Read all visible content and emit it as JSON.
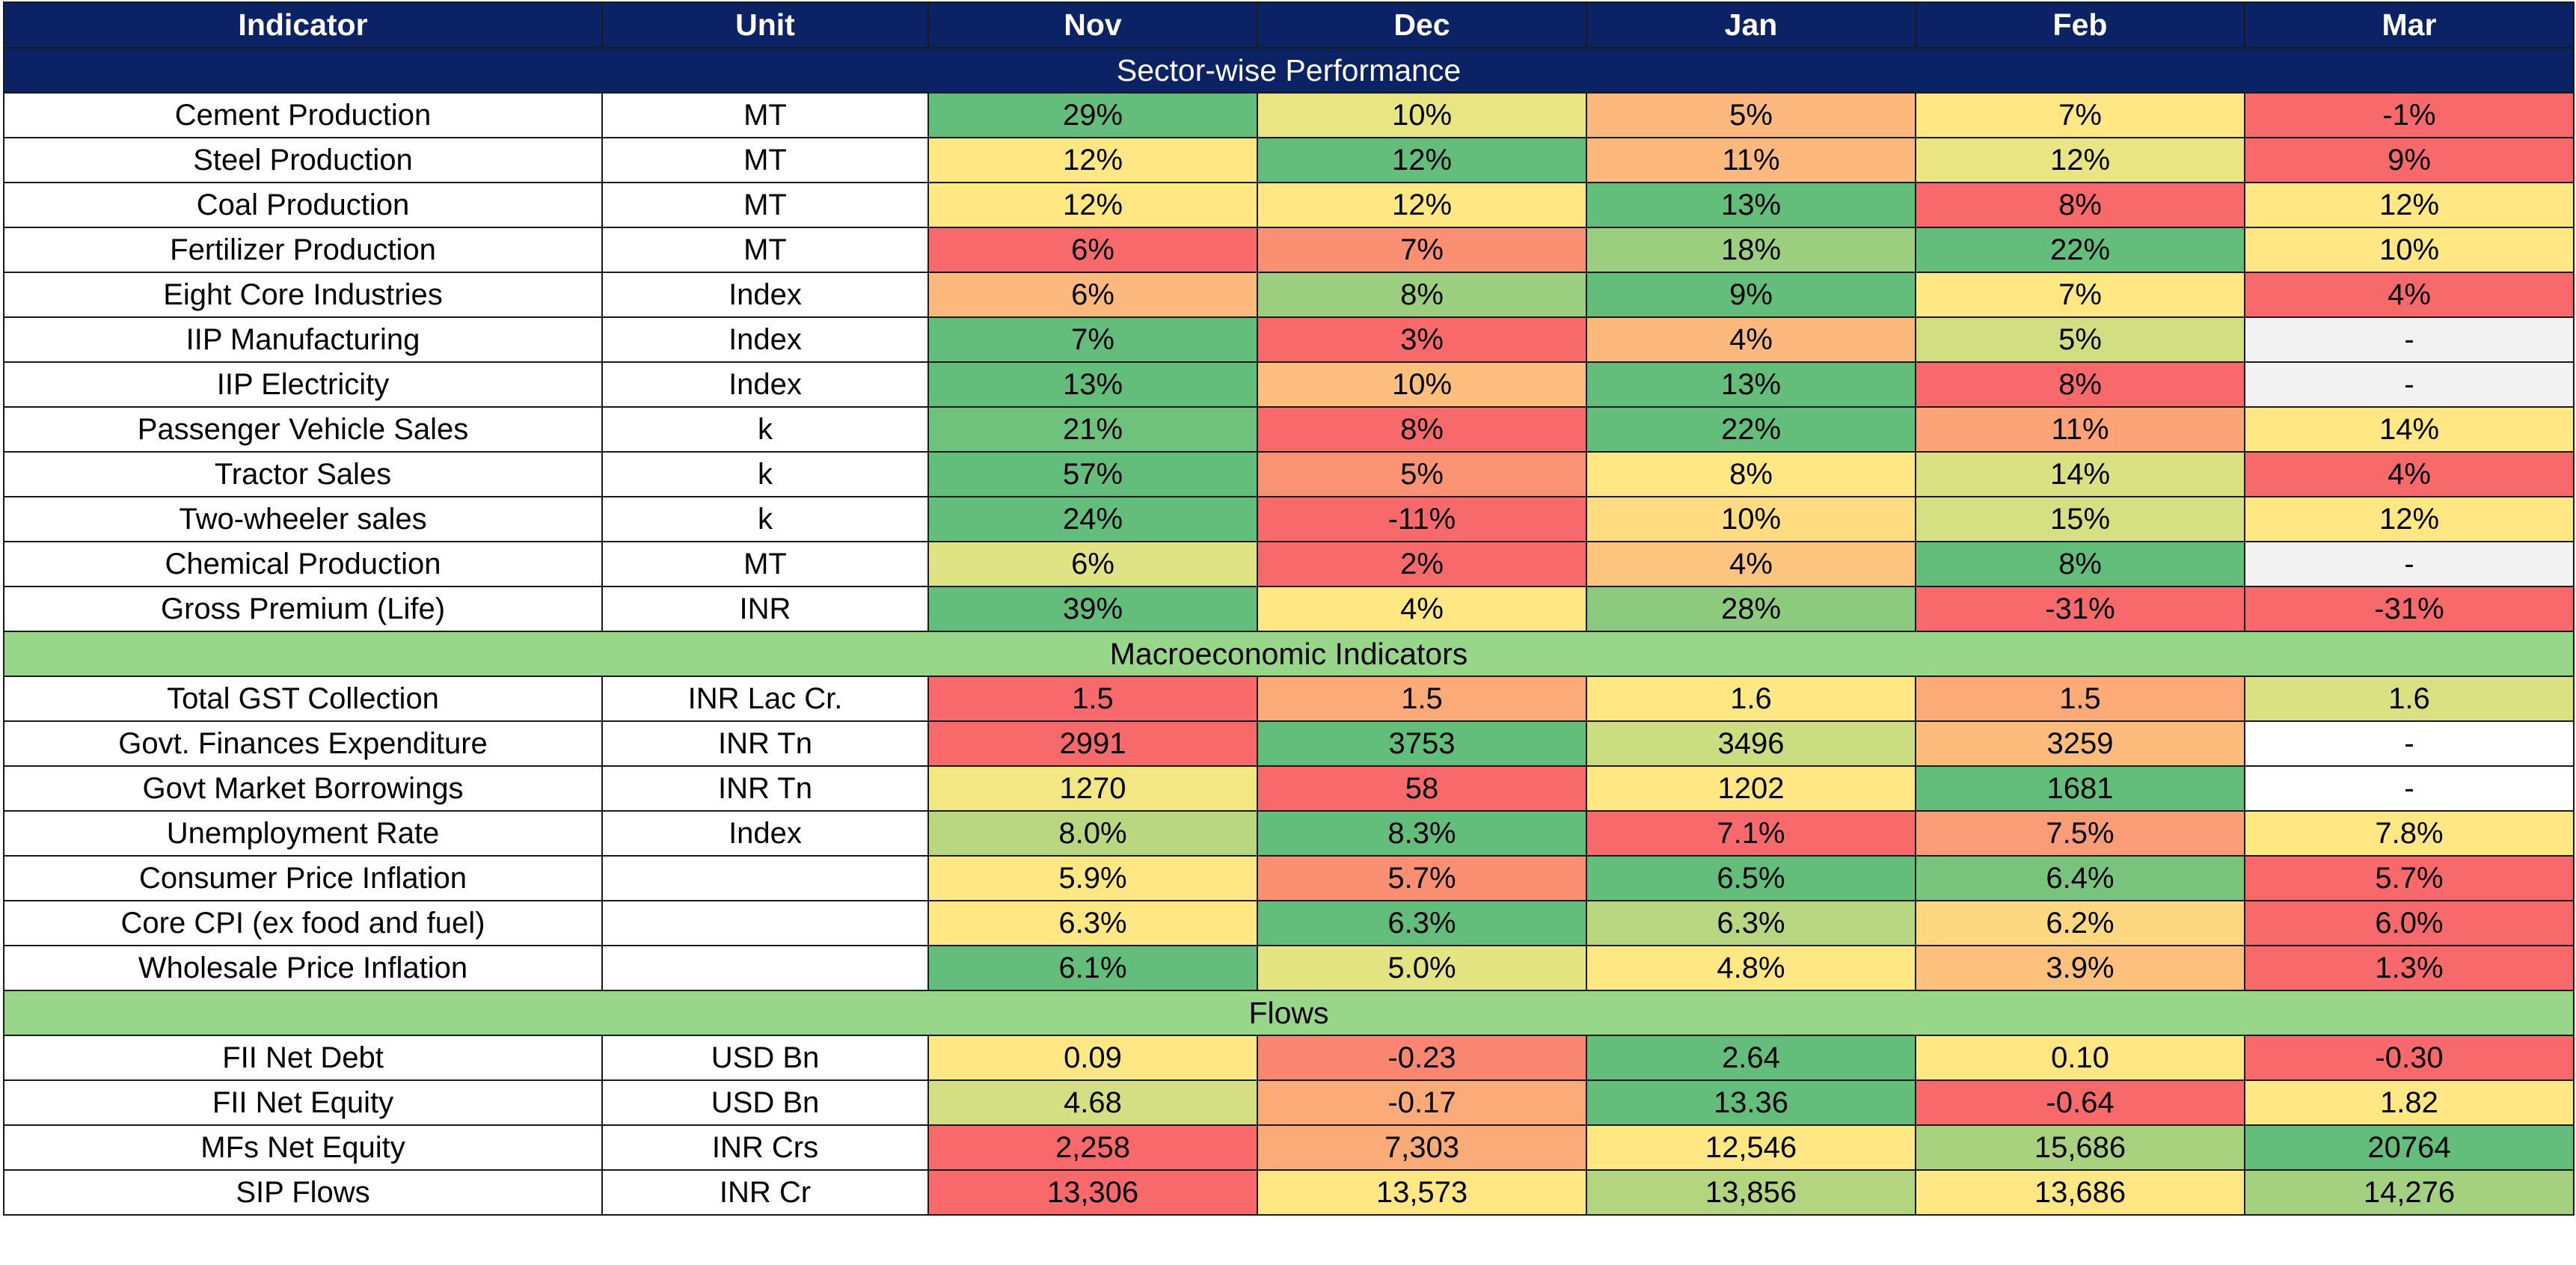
{
  "headers": [
    "Indicator",
    "Unit",
    "Nov",
    "Dec",
    "Jan",
    "Feb",
    "Mar"
  ],
  "sections": [
    {
      "title": "Sector-wise Performance",
      "style": "navy",
      "rows": [
        {
          "indicator": "Cement Production",
          "unit": "MT",
          "values": [
            "29%",
            "10%",
            "5%",
            "7%",
            "-1%"
          ],
          "colors": [
            "#63be7b",
            "#e9e583",
            "#fdb87d",
            "#ffe784",
            "#f8696b"
          ]
        },
        {
          "indicator": "Steel Production",
          "unit": "MT",
          "values": [
            "12%",
            "12%",
            "11%",
            "12%",
            "9%"
          ],
          "colors": [
            "#ffe784",
            "#63be7b",
            "#fdb87d",
            "#e9e583",
            "#f8696b"
          ]
        },
        {
          "indicator": "Coal Production",
          "unit": "MT",
          "values": [
            "12%",
            "12%",
            "13%",
            "8%",
            "12%"
          ],
          "colors": [
            "#ffe784",
            "#ffe784",
            "#63be7b",
            "#f8696b",
            "#ffe784"
          ]
        },
        {
          "indicator": "Fertilizer Production",
          "unit": "MT",
          "values": [
            "6%",
            "7%",
            "18%",
            "22%",
            "10%"
          ],
          "colors": [
            "#f8696b",
            "#fa8f72",
            "#9bce7f",
            "#63be7b",
            "#ffe784"
          ]
        },
        {
          "indicator": "Eight Core Industries",
          "unit": "Index",
          "values": [
            "6%",
            "8%",
            "9%",
            "7%",
            "4%"
          ],
          "colors": [
            "#fdb87d",
            "#9bce7f",
            "#63be7b",
            "#ffe784",
            "#f8696b"
          ]
        },
        {
          "indicator": "IIP Manufacturing",
          "unit": "Index",
          "values": [
            "7%",
            "3%",
            "4%",
            "5%",
            "-"
          ],
          "colors": [
            "#63be7b",
            "#f8696b",
            "#fdb87d",
            "#d1df82",
            "#f2f2f2"
          ]
        },
        {
          "indicator": "IIP Electricity",
          "unit": "Index",
          "values": [
            "13%",
            "10%",
            "13%",
            "8%",
            "-"
          ],
          "colors": [
            "#63be7b",
            "#fdbe7e",
            "#63be7b",
            "#f8696b",
            "#f2f2f2"
          ]
        },
        {
          "indicator": "Passenger Vehicle Sales",
          "unit": "k",
          "values": [
            "21%",
            "8%",
            "22%",
            "11%",
            "14%"
          ],
          "colors": [
            "#6fc27c",
            "#f8696b",
            "#63be7b",
            "#fca377",
            "#ffe784"
          ]
        },
        {
          "indicator": "Tractor Sales",
          "unit": "k",
          "values": [
            "57%",
            "5%",
            "8%",
            "14%",
            "4%"
          ],
          "colors": [
            "#63be7b",
            "#fa9373",
            "#ffe784",
            "#d9e182",
            "#f8696b"
          ]
        },
        {
          "indicator": "Two-wheeler sales",
          "unit": "k",
          "values": [
            "24%",
            "-11%",
            "10%",
            "15%",
            "12%"
          ],
          "colors": [
            "#63be7b",
            "#f8696b",
            "#ffdc81",
            "#d4e082",
            "#ffe784"
          ]
        },
        {
          "indicator": "Chemical Production",
          "unit": "MT",
          "values": [
            "6%",
            "2%",
            "4%",
            "8%",
            "-"
          ],
          "colors": [
            "#e0e383",
            "#f8696b",
            "#fdc47e",
            "#63be7b",
            "#f2f2f2"
          ]
        },
        {
          "indicator": "Gross Premium (Life)",
          "unit": "INR",
          "values": [
            "39%",
            "4%",
            "28%",
            "-31%",
            "-31%"
          ],
          "colors": [
            "#63be7b",
            "#ffe784",
            "#8cca7e",
            "#f8696b",
            "#f8696b"
          ]
        }
      ]
    },
    {
      "title": "Macroeconomic Indicators",
      "style": "green",
      "rows": [
        {
          "indicator": "Total GST Collection",
          "unit": "INR Lac Cr.",
          "values": [
            "1.5",
            "1.5",
            "1.6",
            "1.5",
            "1.6"
          ],
          "colors": [
            "#f8696b",
            "#fcaa78",
            "#ffe784",
            "#fcaa78",
            "#d9e182"
          ]
        },
        {
          "indicator": "Govt. Finances Expenditure",
          "unit": "INR Tn",
          "values": [
            "2991",
            "3753",
            "3496",
            "3259",
            "-"
          ],
          "colors": [
            "#f8696b",
            "#63be7b",
            "#cbdc81",
            "#fdbb7c",
            "#ffffff"
          ]
        },
        {
          "indicator": "Govt Market Borrowings",
          "unit": "INR Tn",
          "values": [
            "1270",
            "58",
            "1202",
            "1681",
            "-"
          ],
          "colors": [
            "#f3e783",
            "#f8696b",
            "#ffe784",
            "#63be7b",
            "#ffffff"
          ]
        },
        {
          "indicator": "Unemployment Rate",
          "unit": "Index",
          "values": [
            "8.0%",
            "8.3%",
            "7.1%",
            "7.5%",
            "7.8%"
          ],
          "colors": [
            "#b9d780",
            "#63be7b",
            "#f8696b",
            "#fa9c75",
            "#ffe784"
          ]
        },
        {
          "indicator": "Consumer Price Inflation",
          "unit": "",
          "values": [
            "5.9%",
            "5.7%",
            "6.5%",
            "6.4%",
            "5.7%"
          ],
          "colors": [
            "#ffe784",
            "#fa8f72",
            "#63be7b",
            "#78c47c",
            "#f8696b"
          ]
        },
        {
          "indicator": "Core CPI (ex food and fuel)",
          "unit": "",
          "values": [
            "6.3%",
            "6.3%",
            "6.3%",
            "6.2%",
            "6.0%"
          ],
          "colors": [
            "#ffe784",
            "#63be7b",
            "#b9d780",
            "#fed880",
            "#f8696b"
          ]
        },
        {
          "indicator": "Wholesale Price Inflation",
          "unit": "",
          "values": [
            "6.1%",
            "5.0%",
            "4.8%",
            "3.9%",
            "1.3%"
          ],
          "colors": [
            "#63be7b",
            "#e4e483",
            "#ffe784",
            "#fdc07d",
            "#f8696b"
          ]
        }
      ]
    },
    {
      "title": "Flows",
      "style": "green",
      "rows": [
        {
          "indicator": "FII Net Debt",
          "unit": "USD Bn",
          "values": [
            "0.09",
            "-0.23",
            "2.64",
            "0.10",
            "-0.30"
          ],
          "colors": [
            "#ffe784",
            "#f98670",
            "#63be7b",
            "#ffe784",
            "#f8696b"
          ]
        },
        {
          "indicator": "FII Net Equity",
          "unit": "USD Bn",
          "values": [
            "4.68",
            "-0.17",
            "13.36",
            "-0.64",
            "1.82"
          ],
          "colors": [
            "#d3df82",
            "#fcaa78",
            "#63be7b",
            "#f8696b",
            "#ffe784"
          ]
        },
        {
          "indicator": "MFs Net Equity",
          "unit": "INR Crs",
          "values": [
            "2,258",
            "7,303",
            "12,546",
            "15,686",
            "20764"
          ],
          "colors": [
            "#f8696b",
            "#fbab77",
            "#ffe784",
            "#a9d27f",
            "#63be7b"
          ]
        },
        {
          "indicator": "SIP Flows",
          "unit": "INR Cr",
          "values": [
            "13,306",
            "13,573",
            "13,856",
            "13,686",
            "14,276"
          ],
          "colors": [
            "#f8696b",
            "#ffe784",
            "#b3d580",
            "#ffe784",
            "#a3d17f"
          ]
        }
      ]
    }
  ]
}
